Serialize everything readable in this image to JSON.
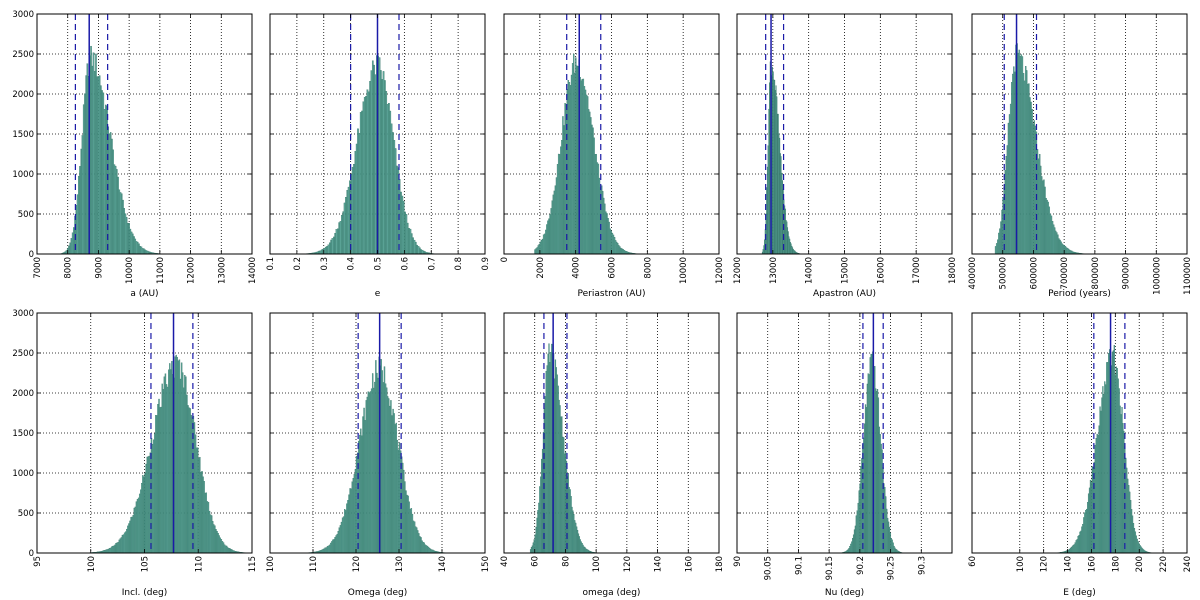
{
  "colors": {
    "bar_fill": "#4a9a8c",
    "bar_edge": "#2e6f62",
    "median_line": "#1a1aa8",
    "interval_line": "#1a1aa8",
    "grid": "#000000",
    "frame": "#000000"
  },
  "chart_data": [
    {
      "type": "bar",
      "xlabel": "a (AU)",
      "xlim": [
        7000,
        14000
      ],
      "ylim": [
        0,
        3000
      ],
      "xticks": [
        7000,
        8000,
        9000,
        10000,
        11000,
        12000,
        13000,
        14000
      ],
      "yticks": [
        0,
        500,
        1000,
        1500,
        2000,
        2500,
        3000
      ],
      "show_yticklabels": true,
      "grid": true,
      "histogram": {
        "bin_start": 7780,
        "bin_end": 11800,
        "bin_width": 40,
        "peak": 8750,
        "peak_count": 2450,
        "sigma_left": 280,
        "sigma_right": 640
      },
      "median": 8700,
      "interval": [
        8250,
        9300
      ]
    },
    {
      "type": "bar",
      "xlabel": "e",
      "xlim": [
        0.1,
        0.9
      ],
      "ylim": [
        0,
        3000
      ],
      "xticks": [
        0.1,
        0.2,
        0.3,
        0.4,
        0.5,
        0.6,
        0.7,
        0.8,
        0.9
      ],
      "yticks": [
        0,
        500,
        1000,
        1500,
        2000,
        2500,
        3000
      ],
      "show_yticklabels": false,
      "grid": true,
      "histogram": {
        "bin_start": 0.2,
        "bin_end": 0.77,
        "bin_width": 0.005,
        "peak": 0.5,
        "peak_count": 2350,
        "sigma_left": 0.075,
        "sigma_right": 0.06
      },
      "median": 0.5,
      "interval": [
        0.4,
        0.58
      ]
    },
    {
      "type": "bar",
      "xlabel": "Periastron (AU)",
      "xlim": [
        0,
        12000
      ],
      "ylim": [
        0,
        3000
      ],
      "xticks": [
        0,
        2000,
        4000,
        6000,
        8000,
        10000,
        12000
      ],
      "yticks": [
        0,
        500,
        1000,
        1500,
        2000,
        2500,
        3000
      ],
      "show_yticklabels": false,
      "grid": true,
      "histogram": {
        "bin_start": 1700,
        "bin_end": 9200,
        "bin_width": 60,
        "peak": 4050,
        "peak_count": 2400,
        "sigma_left": 850,
        "sigma_right": 950
      },
      "median": 4200,
      "interval": [
        3500,
        5400
      ]
    },
    {
      "type": "bar",
      "xlabel": "Apastron (AU)",
      "xlim": [
        12000,
        18000
      ],
      "ylim": [
        0,
        3000
      ],
      "xticks": [
        12000,
        13000,
        14000,
        15000,
        16000,
        17000,
        18000
      ],
      "yticks": [
        0,
        500,
        1000,
        1500,
        2000,
        2500,
        3000
      ],
      "show_yticklabels": false,
      "grid": true,
      "histogram": {
        "bin_start": 12700,
        "bin_end": 15000,
        "bin_width": 20,
        "peak": 12950,
        "peak_count": 2400,
        "sigma_left": 80,
        "sigma_right": 230
      },
      "median": 12950,
      "interval": [
        12800,
        13300
      ]
    },
    {
      "type": "bar",
      "xlabel": "Period (years)",
      "xlim": [
        400000,
        1100000
      ],
      "ylim": [
        0,
        3000
      ],
      "xticks": [
        400000,
        500000,
        600000,
        700000,
        800000,
        900000,
        1000000,
        1100000
      ],
      "yticks": [
        0,
        500,
        1000,
        1500,
        2000,
        2500,
        3000
      ],
      "show_yticklabels": false,
      "grid": true,
      "histogram": {
        "bin_start": 475000,
        "bin_end": 860000,
        "bin_width": 3500,
        "peak": 545000,
        "peak_count": 2480,
        "sigma_left": 27000,
        "sigma_right": 62000
      },
      "median": 545000,
      "interval": [
        505000,
        610000
      ]
    },
    {
      "type": "bar",
      "xlabel": "Incl. (deg)",
      "xlim": [
        95,
        115
      ],
      "ylim": [
        0,
        3000
      ],
      "xticks": [
        95,
        100,
        105,
        110,
        115
      ],
      "yticks": [
        0,
        500,
        1000,
        1500,
        2000,
        2500,
        3000
      ],
      "show_yticklabels": true,
      "grid": true,
      "histogram": {
        "bin_start": 97.5,
        "bin_end": 114.8,
        "bin_width": 0.1,
        "peak": 108,
        "peak_count": 2350,
        "sigma_left": 2.3,
        "sigma_right": 1.8
      },
      "median": 107.7,
      "interval": [
        105.6,
        109.5
      ]
    },
    {
      "type": "bar",
      "xlabel": "Omega (deg)",
      "xlim": [
        100,
        150
      ],
      "ylim": [
        0,
        3000
      ],
      "xticks": [
        100,
        110,
        120,
        130,
        140,
        150
      ],
      "yticks": [
        0,
        500,
        1000,
        1500,
        2000,
        2500,
        3000
      ],
      "show_yticklabels": false,
      "grid": true,
      "histogram": {
        "bin_start": 108,
        "bin_end": 143,
        "bin_width": 0.25,
        "peak": 125.5,
        "peak_count": 2300,
        "sigma_left": 4.7,
        "sigma_right": 4.3
      },
      "median": 125.5,
      "interval": [
        120.5,
        130.5
      ]
    },
    {
      "type": "bar",
      "xlabel": "omega (deg)",
      "xlim": [
        40,
        180
      ],
      "ylim": [
        0,
        3000
      ],
      "xticks": [
        40,
        60,
        80,
        100,
        120,
        140,
        160,
        180
      ],
      "yticks": [
        0,
        500,
        1000,
        1500,
        2000,
        2500,
        3000
      ],
      "show_yticklabels": false,
      "grid": true,
      "histogram": {
        "bin_start": 57,
        "bin_end": 125,
        "bin_width": 0.6,
        "peak": 70,
        "peak_count": 2480,
        "sigma_left": 4.5,
        "sigma_right": 8.5
      },
      "median": 72,
      "interval": [
        66,
        81
      ]
    },
    {
      "type": "bar",
      "xlabel": "Nu (deg)",
      "xlim": [
        90.0,
        90.35
      ],
      "ylim": [
        0,
        3000
      ],
      "xticks": [
        90.0,
        90.05,
        90.1,
        90.15,
        90.2,
        90.25,
        90.3
      ],
      "yticks": [
        0,
        500,
        1000,
        1500,
        2000,
        2500,
        3000
      ],
      "show_yticklabels": false,
      "grid": true,
      "histogram": {
        "bin_start": 90.15,
        "bin_end": 90.3,
        "bin_width": 0.0015,
        "peak": 90.22,
        "peak_count": 2380,
        "sigma_left": 0.014,
        "sigma_right": 0.014
      },
      "median": 90.222,
      "interval": [
        90.205,
        90.238
      ]
    },
    {
      "type": "bar",
      "xlabel": "E (deg)",
      "xlim": [
        60,
        240
      ],
      "ylim": [
        0,
        3000
      ],
      "xticks": [
        60,
        100,
        120,
        140,
        160,
        180,
        200,
        220,
        240
      ],
      "yticks": [
        0,
        500,
        1000,
        1500,
        2000,
        2500,
        3000
      ],
      "show_yticklabels": false,
      "grid": true,
      "histogram": {
        "bin_start": 118,
        "bin_end": 228,
        "bin_width": 0.8,
        "peak": 178,
        "peak_count": 2450,
        "sigma_left": 13,
        "sigma_right": 9
      },
      "median": 176,
      "interval": [
        162,
        188
      ]
    }
  ]
}
